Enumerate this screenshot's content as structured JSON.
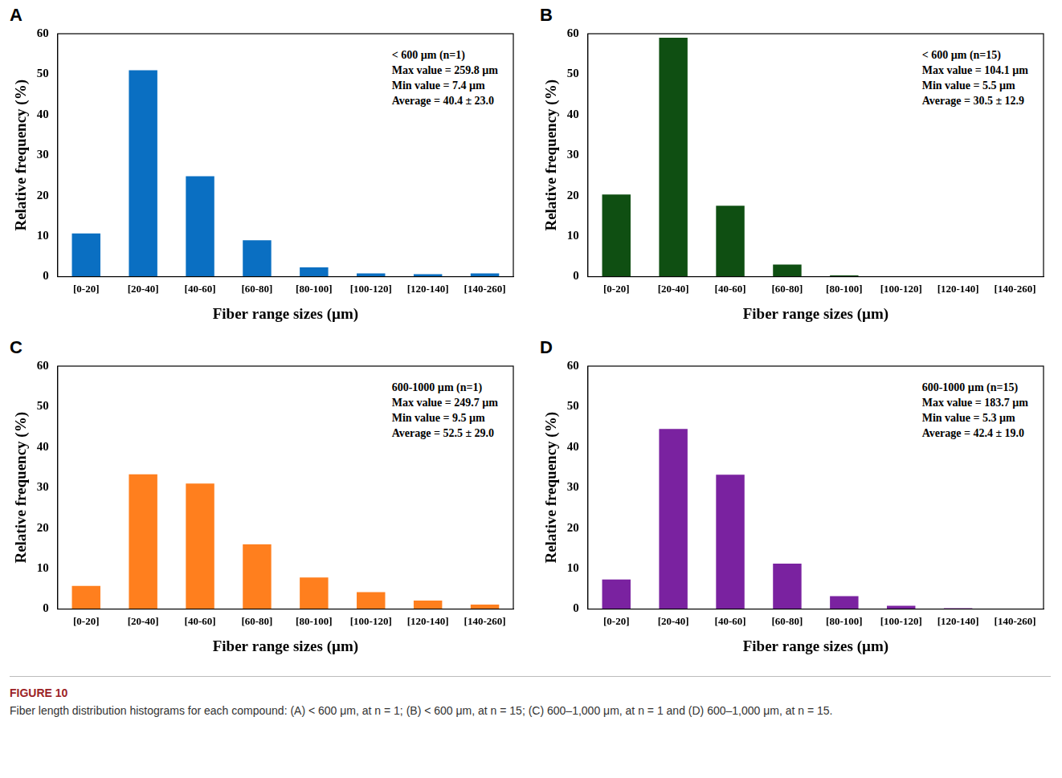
{
  "figure": {
    "label": "FIGURE 10",
    "caption": "Fiber length distribution histograms for each compound: (A) < 600 μm, at n = 1; (B) < 600 μm, at n = 15; (C) 600–1,000 μm, at n = 1 and (D) 600–1,000 μm, at n = 15."
  },
  "chart_data": [
    {
      "type": "bar",
      "panel": "A",
      "x_label": "Fiber range sizes (µm)",
      "y_label": "Relative frequency (%)",
      "categories": [
        "[0-20]",
        "[20-40]",
        "[40-60]",
        "[60-80]",
        "[80-100]",
        "[100-120]",
        "[120-140]",
        "[140-260]"
      ],
      "values": [
        10.7,
        51.0,
        24.8,
        9.0,
        2.3,
        0.8,
        0.6,
        0.8
      ],
      "color": "#0a6fc2",
      "ylim": [
        0,
        60
      ],
      "yticks": [
        0,
        10,
        20,
        30,
        40,
        50,
        60
      ],
      "grid": false,
      "annotations": [
        "< 600 µm (n=1)",
        "Max value = 259.8 µm",
        "Min value = 7.4 µm",
        "Average = 40.4 ± 23.0"
      ]
    },
    {
      "type": "bar",
      "panel": "B",
      "x_label": "Fiber range sizes (µm)",
      "y_label": "Relative frequency (%)",
      "categories": [
        "[0-20]",
        "[20-40]",
        "[40-60]",
        "[60-80]",
        "[80-100]",
        "[100-120]",
        "[120-140]",
        "[140-260]"
      ],
      "values": [
        20.3,
        59.0,
        17.5,
        3.0,
        0.3,
        0.1,
        0,
        0
      ],
      "color": "#0f4f12",
      "ylim": [
        0,
        60
      ],
      "yticks": [
        0,
        10,
        20,
        30,
        40,
        50,
        60
      ],
      "grid": false,
      "annotations": [
        "< 600 µm (n=15)",
        "Max value = 104.1 µm",
        "Min value = 5.5 µm",
        "Average = 30.5 ± 12.9"
      ]
    },
    {
      "type": "bar",
      "panel": "C",
      "x_label": "Fiber range sizes (µm)",
      "y_label": "Relative frequency (%)",
      "categories": [
        "[0-20]",
        "[20-40]",
        "[40-60]",
        "[60-80]",
        "[80-100]",
        "[100-120]",
        "[120-140]",
        "[140-260]"
      ],
      "values": [
        5.7,
        33.3,
        31.0,
        16.0,
        7.8,
        4.2,
        2.1,
        1.1
      ],
      "color": "#ff7f1e",
      "ylim": [
        0,
        60
      ],
      "yticks": [
        0,
        10,
        20,
        30,
        40,
        50,
        60
      ],
      "grid": false,
      "annotations": [
        "600-1000 µm (n=1)",
        "Max value = 249.7 µm",
        "Min value = 9.5 µm",
        "Average = 52.5 ± 29.0"
      ]
    },
    {
      "type": "bar",
      "panel": "D",
      "x_label": "Fiber range sizes (µm)",
      "y_label": "Relative frequency (%)",
      "categories": [
        "[0-20]",
        "[20-40]",
        "[40-60]",
        "[60-80]",
        "[80-100]",
        "[100-120]",
        "[120-140]",
        "[140-260]"
      ],
      "values": [
        7.3,
        44.5,
        33.2,
        11.2,
        3.2,
        0.8,
        0.2,
        0
      ],
      "color": "#7a22a0",
      "ylim": [
        0,
        60
      ],
      "yticks": [
        0,
        10,
        20,
        30,
        40,
        50,
        60
      ],
      "grid": false,
      "annotations": [
        "600-1000 µm (n=15)",
        "Max value = 183.7 µm",
        "Min value = 5.3 µm",
        "Average = 42.4 ± 19.0"
      ]
    }
  ]
}
